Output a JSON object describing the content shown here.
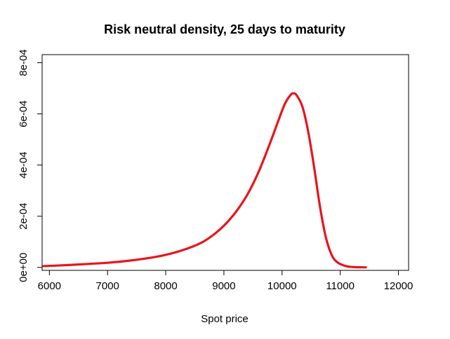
{
  "chart_data": {
    "type": "line",
    "title": "Risk neutral density, 25 days to maturity",
    "xlabel": "Spot price",
    "ylabel": "",
    "xlim": [
      5875,
      12175
    ],
    "ylim": [
      -1.16e-05,
      0.0008316
    ],
    "x_ticks": [
      6000,
      7000,
      8000,
      9000,
      10000,
      11000,
      12000
    ],
    "x_tick_labels": [
      "6000",
      "7000",
      "8000",
      "9000",
      "10000",
      "11000",
      "12000"
    ],
    "y_ticks": [
      0,
      0.0002,
      0.0004,
      0.0006,
      0.0008
    ],
    "y_tick_labels": [
      "0e+00",
      "2e-04",
      "4e-04",
      "6e-04",
      "8e-04"
    ],
    "grid": false,
    "legend": "none",
    "series": [
      {
        "color": "#e8141c",
        "x": [
          5900,
          6300,
          6700,
          7000,
          7400,
          7800,
          8000,
          8300,
          8600,
          8800,
          9000,
          9200,
          9400,
          9600,
          9800,
          9950,
          10050,
          10150,
          10200,
          10250,
          10350,
          10450,
          10550,
          10650,
          10750,
          10850,
          10950,
          11100,
          11250,
          11440
        ],
        "y": [
          5e-06,
          9e-06,
          1.4e-05,
          1.8e-05,
          2.7e-05,
          4e-05,
          4.9e-05,
          6.8e-05,
          9.5e-05,
          0.000124,
          0.000163,
          0.000215,
          0.000283,
          0.000375,
          0.00049,
          0.000582,
          0.00064,
          0.000675,
          0.00068,
          0.000673,
          0.000628,
          0.00053,
          0.000393,
          0.00024,
          0.00012,
          5e-05,
          2e-05,
          5e-06,
          1e-06,
          2e-07
        ]
      }
    ]
  }
}
